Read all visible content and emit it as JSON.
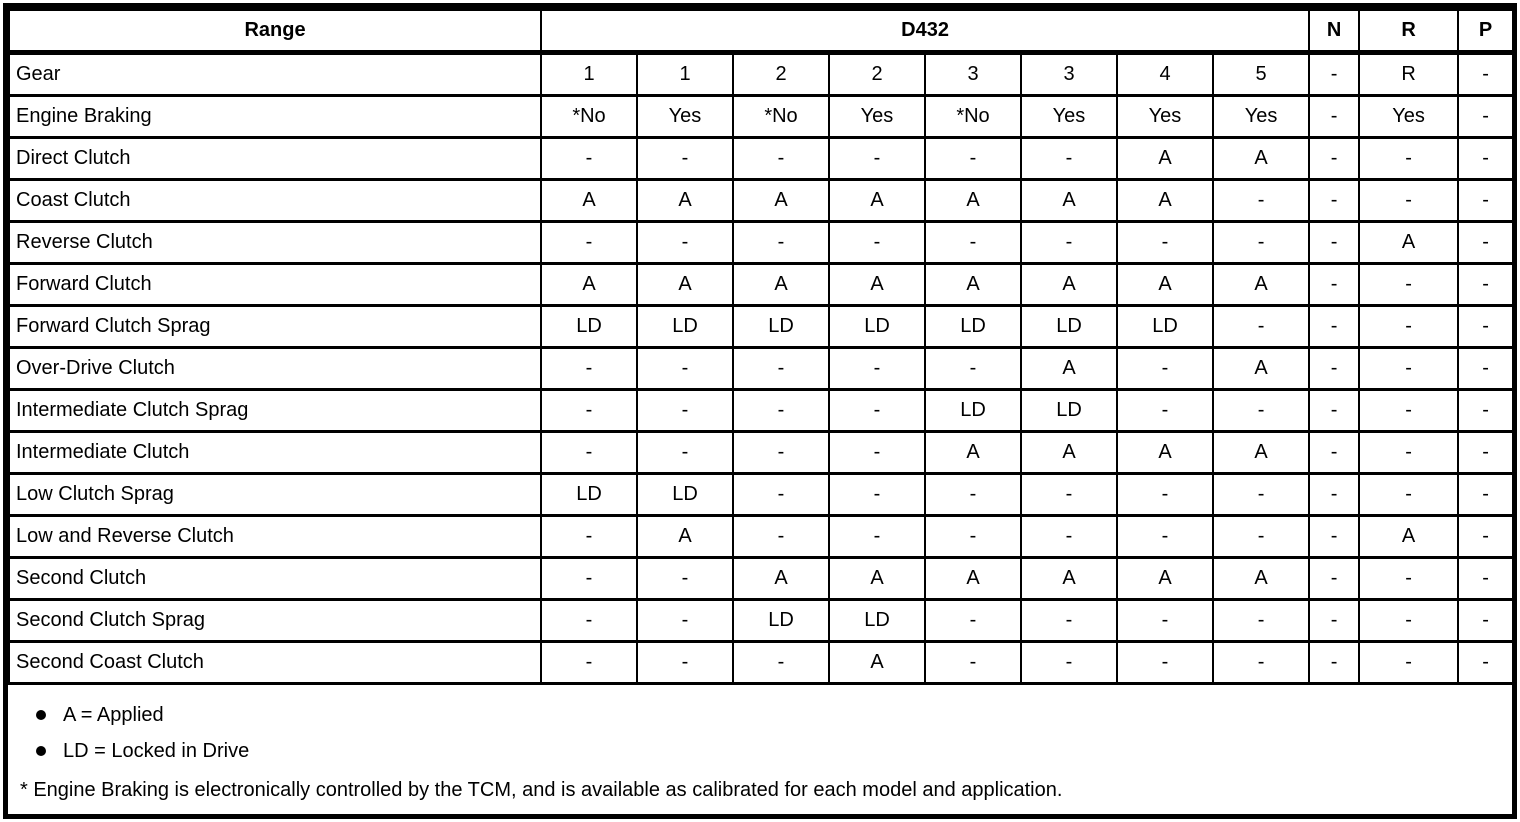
{
  "table": {
    "header": {
      "range_label": "Range",
      "group_label": "D432",
      "extra_cols": [
        "N",
        "R",
        "P"
      ]
    },
    "rows": [
      {
        "label": "Gear",
        "values": [
          "1",
          "1",
          "2",
          "2",
          "3",
          "3",
          "4",
          "5",
          "-",
          "R",
          "-"
        ]
      },
      {
        "label": "Engine Braking",
        "values": [
          "*No",
          "Yes",
          "*No",
          "Yes",
          "*No",
          "Yes",
          "Yes",
          "Yes",
          "-",
          "Yes",
          "-"
        ]
      },
      {
        "label": "Direct Clutch",
        "values": [
          "-",
          "-",
          "-",
          "-",
          "-",
          "-",
          "A",
          "A",
          "-",
          "-",
          "-"
        ]
      },
      {
        "label": "Coast Clutch",
        "values": [
          "A",
          "A",
          "A",
          "A",
          "A",
          "A",
          "A",
          "-",
          "-",
          "-",
          "-"
        ]
      },
      {
        "label": "Reverse Clutch",
        "values": [
          "-",
          "-",
          "-",
          "-",
          "-",
          "-",
          "-",
          "-",
          "-",
          "A",
          "-"
        ]
      },
      {
        "label": "Forward Clutch",
        "values": [
          "A",
          "A",
          "A",
          "A",
          "A",
          "A",
          "A",
          "A",
          "-",
          "-",
          "-"
        ]
      },
      {
        "label": "Forward Clutch Sprag",
        "values": [
          "LD",
          "LD",
          "LD",
          "LD",
          "LD",
          "LD",
          "LD",
          "-",
          "-",
          "-",
          "-"
        ]
      },
      {
        "label": "Over-Drive Clutch",
        "values": [
          "-",
          "-",
          "-",
          "-",
          "-",
          "A",
          "-",
          "A",
          "-",
          "-",
          "-"
        ]
      },
      {
        "label": "Intermediate Clutch Sprag",
        "values": [
          "-",
          "-",
          "-",
          "-",
          "LD",
          "LD",
          "-",
          "-",
          "-",
          "-",
          "-"
        ]
      },
      {
        "label": "Intermediate Clutch",
        "values": [
          "-",
          "-",
          "-",
          "-",
          "A",
          "A",
          "A",
          "A",
          "-",
          "-",
          "-"
        ]
      },
      {
        "label": "Low Clutch Sprag",
        "values": [
          "LD",
          "LD",
          "-",
          "-",
          "-",
          "-",
          "-",
          "-",
          "-",
          "-",
          "-"
        ]
      },
      {
        "label": "Low and Reverse Clutch",
        "values": [
          "-",
          "A",
          "-",
          "-",
          "-",
          "-",
          "-",
          "-",
          "-",
          "A",
          "-"
        ]
      },
      {
        "label": "Second Clutch",
        "values": [
          "-",
          "-",
          "A",
          "A",
          "A",
          "A",
          "A",
          "A",
          "-",
          "-",
          "-"
        ]
      },
      {
        "label": "Second Clutch Sprag",
        "values": [
          "-",
          "-",
          "LD",
          "LD",
          "-",
          "-",
          "-",
          "-",
          "-",
          "-",
          "-"
        ]
      },
      {
        "label": "Second Coast Clutch",
        "values": [
          "-",
          "-",
          "-",
          "A",
          "-",
          "-",
          "-",
          "-",
          "-",
          "-",
          "-"
        ]
      }
    ],
    "legend": [
      "A = Applied",
      "LD = Locked in Drive"
    ],
    "footnote": "* Engine Braking is electronically controlled by the TCM, and is available as calibrated for each model and application.",
    "colors": {
      "border": "#000000",
      "text": "#000000",
      "background": "#ffffff"
    }
  }
}
